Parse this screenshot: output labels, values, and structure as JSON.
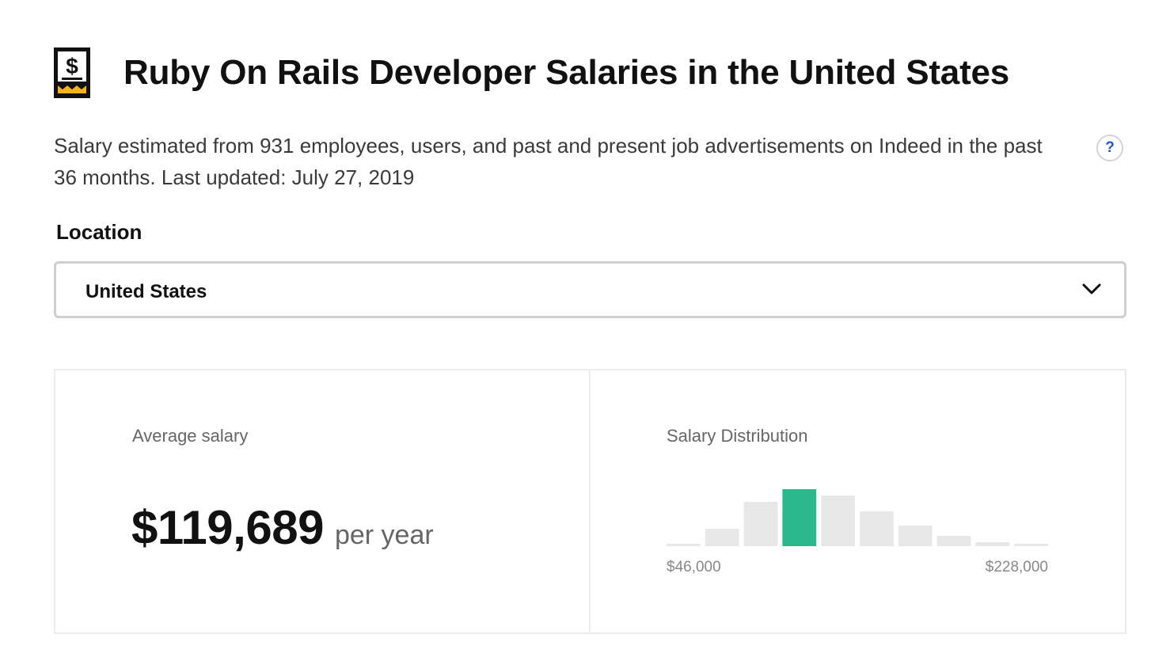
{
  "header": {
    "title": "Ruby On Rails Developer Salaries in the United States",
    "logo_icon": "salary-receipt-icon"
  },
  "description": "Salary estimated from 931 employees, users, and past and present job advertisements on Indeed in the past 36 months. Last updated: July 27, 2019",
  "help": {
    "label": "?",
    "icon": "question-icon"
  },
  "location": {
    "label": "Location",
    "selected": "United States",
    "icon": "chevron-down-icon"
  },
  "average": {
    "label": "Average salary",
    "amount": "$119,689",
    "unit": "per year"
  },
  "distribution": {
    "label": "Salary Distribution",
    "min_label": "$46,000",
    "max_label": "$228,000"
  },
  "chart_data": {
    "type": "bar",
    "categories": [
      "1",
      "2",
      "3",
      "4",
      "5",
      "6",
      "7",
      "8",
      "9",
      "10"
    ],
    "values": [
      3,
      22,
      56,
      72,
      64,
      44,
      26,
      13,
      5,
      3
    ],
    "highlight_index": 3,
    "ylim": [
      0,
      72
    ],
    "grid": false,
    "colors": {
      "bar": "#e8e8e8",
      "highlight": "#2bb88a"
    },
    "x_range_labels": [
      "$46,000",
      "$228,000"
    ]
  }
}
